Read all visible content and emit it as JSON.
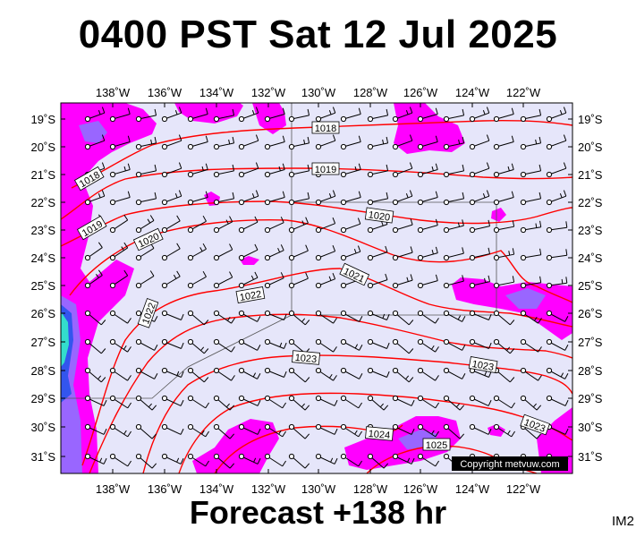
{
  "title": "0400 PST Sat 12 Jul 2025",
  "footer": "Forecast +138 hr",
  "corner_label": "IM2",
  "copyright": "Copyright metvuw.com",
  "colors": {
    "background": "#e6e6fa",
    "rain_light": "#ff00ff",
    "rain_medium": "#9966ff",
    "rain_heavy": "#3355ee",
    "rain_extreme": "#33ddcc",
    "isobar": "#ff0000",
    "wind": "#000000"
  },
  "lon_labels": [
    "138˚W",
    "136˚W",
    "134˚W",
    "132˚W",
    "130˚W",
    "128˚W",
    "126˚W",
    "124˚W",
    "122˚W"
  ],
  "lat_labels": [
    "19˚S",
    "20˚S",
    "21˚S",
    "22˚S",
    "23˚S",
    "24˚S",
    "25˚S",
    "26˚S",
    "27˚S",
    "28˚S",
    "29˚S",
    "30˚S",
    "31˚S"
  ],
  "isobar_labels": [
    "1018",
    "1018",
    "1019",
    "1019",
    "1020",
    "1020",
    "1021",
    "1022",
    "1022",
    "1023",
    "1023",
    "1023",
    "1024",
    "1025"
  ]
}
